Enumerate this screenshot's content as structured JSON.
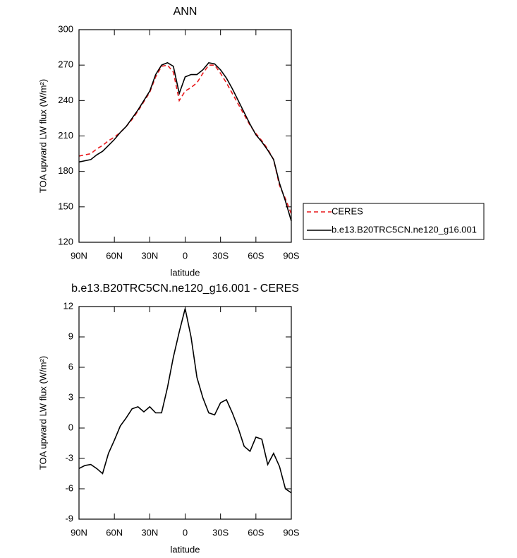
{
  "chart_data": [
    {
      "type": "line",
      "title": "ANN",
      "x_label": "latitude",
      "y_label": "TOA upward LW flux (W/m²)",
      "x": [
        90,
        85,
        80,
        75,
        70,
        65,
        60,
        55,
        50,
        45,
        40,
        35,
        30,
        25,
        20,
        15,
        10,
        5,
        0,
        -5,
        -10,
        -15,
        -20,
        -25,
        -30,
        -35,
        -40,
        -45,
        -50,
        -55,
        -60,
        -65,
        -70,
        -75,
        -80,
        -85,
        -90
      ],
      "series": [
        {
          "name": "CERES",
          "color": "#e8191c",
          "line_style": "dashed",
          "values": [
            193,
            194,
            195,
            199,
            202,
            206,
            209,
            213,
            218,
            224,
            231,
            239,
            247,
            260,
            269,
            270,
            264,
            240,
            248,
            251,
            255,
            263,
            270,
            270,
            263,
            255,
            246,
            237,
            228,
            219,
            212,
            206,
            199,
            190,
            168,
            157,
            144
          ]
        },
        {
          "name": "b.e13.B20TRC5CN.ne120_g16.001",
          "color": "#000000",
          "line_style": "solid",
          "values": [
            188,
            189,
            190,
            194,
            197,
            202,
            207,
            213,
            218,
            225,
            232,
            240,
            248,
            262,
            270,
            272,
            269,
            246,
            260,
            262,
            262,
            266,
            272,
            271,
            266,
            259,
            250,
            240,
            230,
            220,
            211,
            205,
            198,
            190,
            170,
            155,
            138
          ]
        }
      ],
      "xlim": [
        90,
        -90
      ],
      "xticks": [
        {
          "value": 90,
          "label": "90N"
        },
        {
          "value": 60,
          "label": "60N"
        },
        {
          "value": 30,
          "label": "30N"
        },
        0,
        {
          "value": -30,
          "label": "30S"
        },
        {
          "value": -60,
          "label": "60S"
        },
        {
          "value": -90,
          "label": "90S"
        }
      ],
      "ylim": [
        120,
        300
      ],
      "yticks": [
        120,
        150,
        180,
        210,
        240,
        270,
        300
      ],
      "legend": "right"
    },
    {
      "type": "line",
      "title": "b.e13.B20TRC5CN.ne120_g16.001 - CERES",
      "x_label": "latitude",
      "y_label": "TOA upward LW flux (W/m²)",
      "x": [
        90,
        85,
        80,
        75,
        70,
        65,
        60,
        55,
        50,
        45,
        40,
        35,
        30,
        25,
        20,
        15,
        10,
        5,
        0,
        -5,
        -10,
        -15,
        -20,
        -25,
        -30,
        -35,
        -40,
        -45,
        -50,
        -55,
        -60,
        -65,
        -70,
        -75,
        -80,
        -85,
        -90
      ],
      "series": [
        {
          "color": "#000000",
          "line_style": "solid",
          "values": [
            -4,
            -3.7,
            -3.6,
            -4,
            -4.5,
            -2.5,
            -1.2,
            0.2,
            1,
            1.9,
            2.1,
            1.6,
            2.1,
            1.5,
            1.5,
            4,
            7,
            9.5,
            11.8,
            9,
            5,
            3,
            1.5,
            1.3,
            2.5,
            2.8,
            1.5,
            0,
            -1.8,
            -2.3,
            -0.9,
            -1.1,
            -3.6,
            -2.5,
            -3.8,
            -6,
            -6.4
          ]
        }
      ],
      "xlim": [
        90,
        -90
      ],
      "xticks": [
        {
          "value": 90,
          "label": "90N"
        },
        {
          "value": 60,
          "label": "60N"
        },
        {
          "value": 30,
          "label": "30N"
        },
        0,
        {
          "value": -30,
          "label": "30S"
        },
        {
          "value": -60,
          "label": "60S"
        },
        {
          "value": -90,
          "label": "90S"
        }
      ],
      "ylim": [
        -9,
        12
      ],
      "yticks": [
        -9,
        -6,
        -3,
        0,
        3,
        6,
        9,
        12
      ]
    }
  ]
}
